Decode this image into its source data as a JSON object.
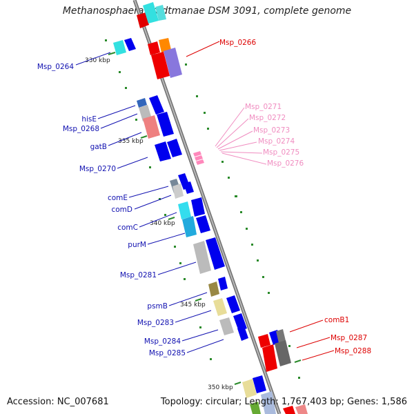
{
  "title": "Methanosphaera stadtmanae DSM 3091, complete genome",
  "footer": {
    "accession": "Accession: NC_007681",
    "summary": "Topology: circular; Length: 1,767,403 bp; Genes: 1,586"
  },
  "colors": {
    "blue_label": "#1010b0",
    "red_label": "#dd0000",
    "pink_label": "#f08cc0",
    "backbone": "#808080",
    "tick": "#2a8a2a"
  },
  "kbp_ticks": [
    "330 kbp",
    "335 kbp",
    "340 kbp",
    "345 kbp",
    "350 kbp"
  ],
  "gene_labels": [
    {
      "id": "Msp_0264",
      "text": "Msp_0264",
      "group": "left"
    },
    {
      "id": "Msp_0266",
      "text": "Msp_0266",
      "group": "right"
    },
    {
      "id": "hisE",
      "text": "hisE",
      "group": "left"
    },
    {
      "id": "Msp_0268",
      "text": "Msp_0268",
      "group": "left"
    },
    {
      "id": "gatB",
      "text": "gatB",
      "group": "left"
    },
    {
      "id": "Msp_0270",
      "text": "Msp_0270",
      "group": "left"
    },
    {
      "id": "Msp_0271",
      "text": "Msp_0271",
      "group": "pink"
    },
    {
      "id": "Msp_0272",
      "text": "Msp_0272",
      "group": "pink"
    },
    {
      "id": "Msp_0273",
      "text": "Msp_0273",
      "group": "pink"
    },
    {
      "id": "Msp_0274",
      "text": "Msp_0274",
      "group": "pink"
    },
    {
      "id": "Msp_0275",
      "text": "Msp_0275",
      "group": "pink"
    },
    {
      "id": "Msp_0276",
      "text": "Msp_0276",
      "group": "pink"
    },
    {
      "id": "comE",
      "text": "comE",
      "group": "left"
    },
    {
      "id": "comD",
      "text": "comD",
      "group": "left"
    },
    {
      "id": "comC",
      "text": "comC",
      "group": "left"
    },
    {
      "id": "purM",
      "text": "purM",
      "group": "left"
    },
    {
      "id": "Msp_0281",
      "text": "Msp_0281",
      "group": "left"
    },
    {
      "id": "psmB",
      "text": "psmB",
      "group": "left"
    },
    {
      "id": "Msp_0283",
      "text": "Msp_0283",
      "group": "left"
    },
    {
      "id": "Msp_0284",
      "text": "Msp_0284",
      "group": "left"
    },
    {
      "id": "Msp_0285",
      "text": "Msp_0285",
      "group": "left"
    },
    {
      "id": "comB1",
      "text": "comB1",
      "group": "right"
    },
    {
      "id": "Msp_0287",
      "text": "Msp_0287",
      "group": "right"
    },
    {
      "id": "Msp_0288",
      "text": "Msp_0288",
      "group": "right"
    }
  ]
}
